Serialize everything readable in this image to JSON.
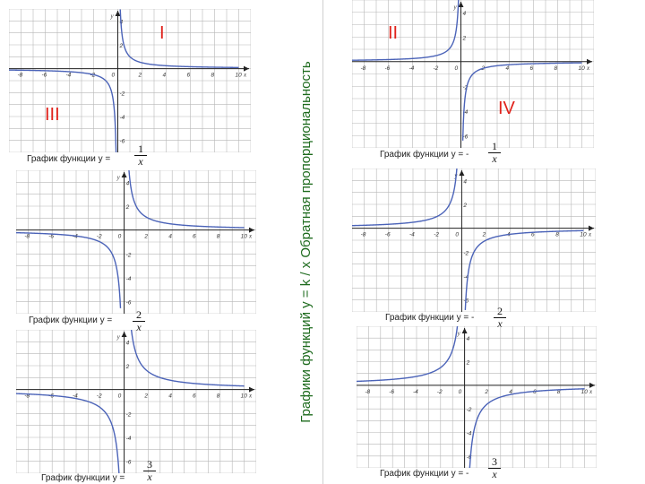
{
  "title": "Графики функций   y = k / x    Обратная пропорциональность",
  "quadrants": {
    "q1": "I",
    "q2": "II",
    "q3": "III",
    "q4": "IV"
  },
  "x_tick_labels": [
    "-8",
    "-6",
    "-4",
    "-2",
    "0",
    "2",
    "4",
    "6",
    "8",
    "10"
  ],
  "y_tick_labels": [
    "4",
    "2",
    "-2",
    "-4",
    "-6"
  ],
  "axis_x": "x",
  "axis_y": "y",
  "colors": {
    "grid": "#b7b7b7",
    "axis": "#222222",
    "curve": "#4b63b8",
    "roman": "#e0221b",
    "title": "#1e6b1e"
  },
  "panels": [
    {
      "id": "left-1",
      "k": 1,
      "caption": "График функции y = ",
      "num": "1",
      "den": "x"
    },
    {
      "id": "left-2",
      "k": 2,
      "caption": "График функции y = ",
      "num": "2",
      "den": "x"
    },
    {
      "id": "left-3",
      "k": 3,
      "caption": "График функции y = ",
      "num": "3",
      "den": "x"
    },
    {
      "id": "right-1",
      "k": -1,
      "caption": "График функции y = -",
      "num": "1",
      "den": "x"
    },
    {
      "id": "right-2",
      "k": -2,
      "caption": "График функции y = -",
      "num": "2",
      "den": "x"
    },
    {
      "id": "right-3",
      "k": -3,
      "caption": "График функции y = -",
      "num": "3",
      "den": "x"
    }
  ]
}
